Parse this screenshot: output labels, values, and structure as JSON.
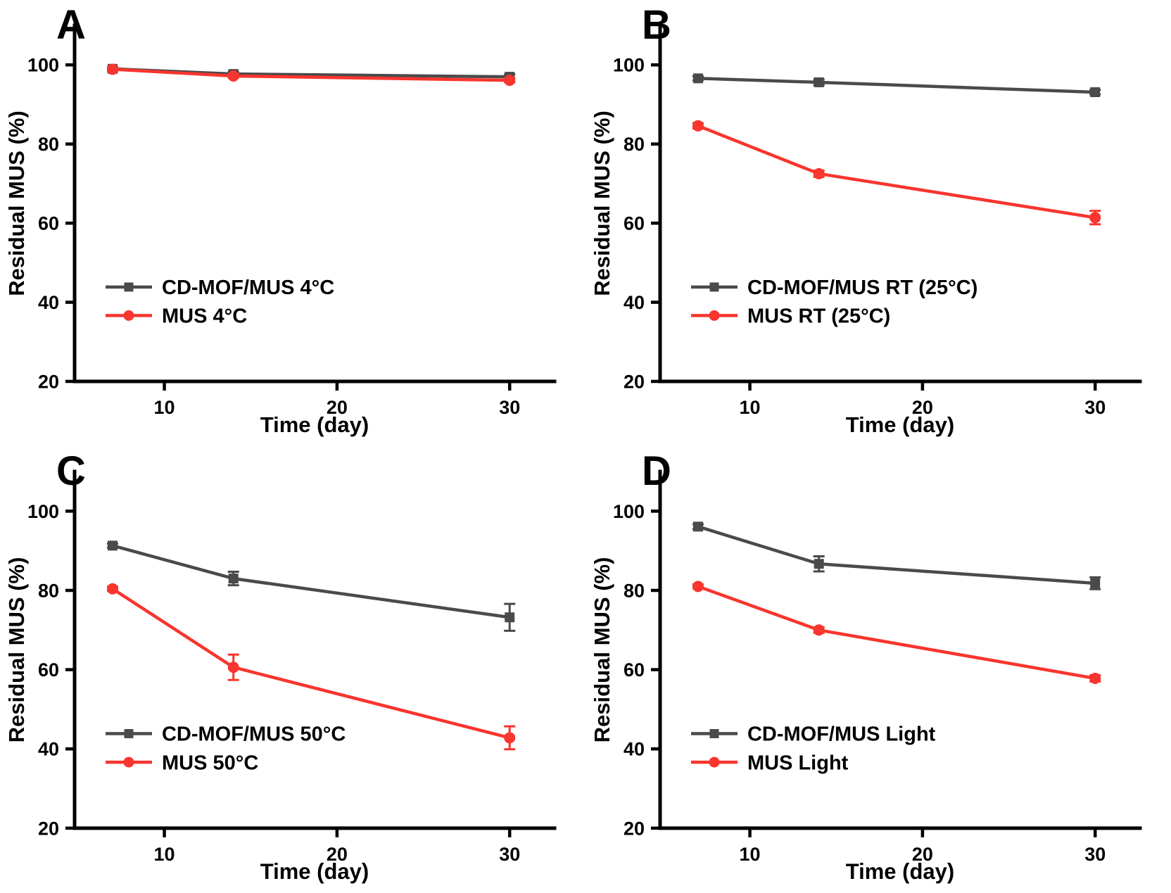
{
  "figure": {
    "background": "#ffffff",
    "axis_color": "#000000",
    "text_color": "#000000",
    "series_colors": {
      "cd_mof_mus": "#4a4a4a",
      "mus": "#f8352e"
    }
  },
  "chart_data": [
    {
      "type": "line",
      "panel": "A",
      "condition": "4°C",
      "xlabel": "Time (day)",
      "ylabel": "Residual MUS (%)",
      "x": [
        7,
        14,
        30
      ],
      "xticks": [
        10,
        20,
        30
      ],
      "yticks": [
        20,
        40,
        60,
        80,
        100
      ],
      "xlim": [
        4.8,
        32.6
      ],
      "ylim": [
        20,
        110
      ],
      "grid": false,
      "legend_position": "lower-left",
      "series": [
        {
          "name": "CD-MOF/MUS 4°C",
          "color": "#4a4a4a",
          "marker": "square",
          "values": [
            99.0,
            97.7,
            97.0
          ],
          "errors": [
            0.4,
            0.6,
            0.6
          ]
        },
        {
          "name": "MUS 4°C",
          "color": "#f8352e",
          "marker": "circle",
          "values": [
            98.9,
            97.2,
            96.1
          ],
          "errors": [
            0.5,
            0.5,
            0.5
          ]
        }
      ]
    },
    {
      "type": "line",
      "panel": "B",
      "condition": "RT (25°C)",
      "xlabel": "Time (day)",
      "ylabel": "Residual MUS (%)",
      "x": [
        7,
        14,
        30
      ],
      "xticks": [
        10,
        20,
        30
      ],
      "yticks": [
        20,
        40,
        60,
        80,
        100
      ],
      "xlim": [
        4.8,
        32.6
      ],
      "ylim": [
        20,
        110
      ],
      "grid": false,
      "legend_position": "lower-left",
      "series": [
        {
          "name": "CD-MOF/MUS RT (25°C)",
          "color": "#4a4a4a",
          "marker": "square",
          "values": [
            96.6,
            95.6,
            93.1
          ],
          "errors": [
            0.5,
            0.7,
            0.6
          ]
        },
        {
          "name": "MUS RT (25°C)",
          "color": "#f8352e",
          "marker": "circle",
          "values": [
            84.6,
            72.5,
            61.4
          ],
          "errors": [
            0.7,
            0.8,
            1.7
          ]
        }
      ]
    },
    {
      "type": "line",
      "panel": "C",
      "condition": "50°C",
      "xlabel": "Time (day)",
      "ylabel": "Residual MUS (%)",
      "x": [
        7,
        14,
        30
      ],
      "xticks": [
        10,
        20,
        30
      ],
      "yticks": [
        20,
        40,
        60,
        80,
        100
      ],
      "xlim": [
        4.8,
        32.6
      ],
      "ylim": [
        20,
        110
      ],
      "grid": false,
      "legend_position": "lower-left",
      "series": [
        {
          "name": "CD-MOF/MUS 50°C",
          "color": "#4a4a4a",
          "marker": "square",
          "values": [
            91.3,
            83.0,
            73.2
          ],
          "errors": [
            0.5,
            1.7,
            3.4
          ]
        },
        {
          "name": "MUS 50°C",
          "color": "#f8352e",
          "marker": "circle",
          "values": [
            80.4,
            60.6,
            42.8
          ],
          "errors": [
            0.5,
            3.2,
            2.9
          ]
        }
      ]
    },
    {
      "type": "line",
      "panel": "D",
      "condition": "Light",
      "xlabel": "Time (day)",
      "ylabel": "Residual MUS (%)",
      "x": [
        7,
        14,
        30
      ],
      "xticks": [
        10,
        20,
        30
      ],
      "yticks": [
        20,
        40,
        60,
        80,
        100
      ],
      "xlim": [
        4.8,
        32.6
      ],
      "ylim": [
        20,
        110
      ],
      "grid": false,
      "legend_position": "lower-left",
      "series": [
        {
          "name": "CD-MOF/MUS Light",
          "color": "#4a4a4a",
          "marker": "square",
          "values": [
            96.1,
            86.7,
            81.8
          ],
          "errors": [
            0.6,
            1.9,
            1.5
          ]
        },
        {
          "name": "MUS Light",
          "color": "#f8352e",
          "marker": "circle",
          "values": [
            81.0,
            70.0,
            57.8
          ],
          "errors": [
            0.5,
            0.7,
            0.8
          ]
        }
      ]
    }
  ]
}
